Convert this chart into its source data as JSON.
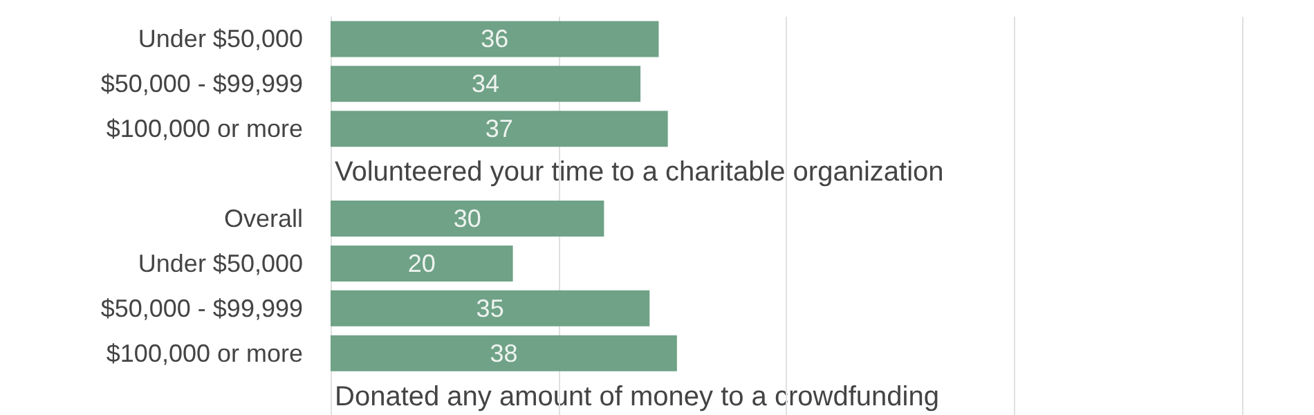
{
  "chart_data": {
    "type": "bar",
    "orientation": "horizontal",
    "categories": [
      "Under $50,000",
      "$50,000 - $99,999",
      "$100,000 or more",
      null,
      "Overall",
      "Under $50,000",
      "$50,000 - $99,999",
      "$100,000 or more",
      null
    ],
    "values": [
      36,
      34,
      37,
      null,
      30,
      20,
      35,
      38,
      null
    ],
    "color": "#6fa287",
    "data_labels": true,
    "xlim": [
      0,
      100
    ],
    "xticks": [
      {
        "value": 0,
        "label": null
      },
      {
        "value": 25,
        "label": null
      },
      {
        "value": 50,
        "label": null
      },
      {
        "value": 75,
        "label": null
      },
      {
        "value": 100,
        "label": null
      }
    ],
    "tick_labels": "y",
    "grid": "x",
    "annotations": [
      "Volunteered your time to a charitable organization",
      "Donated any amount of money to a crowdfunding"
    ]
  }
}
